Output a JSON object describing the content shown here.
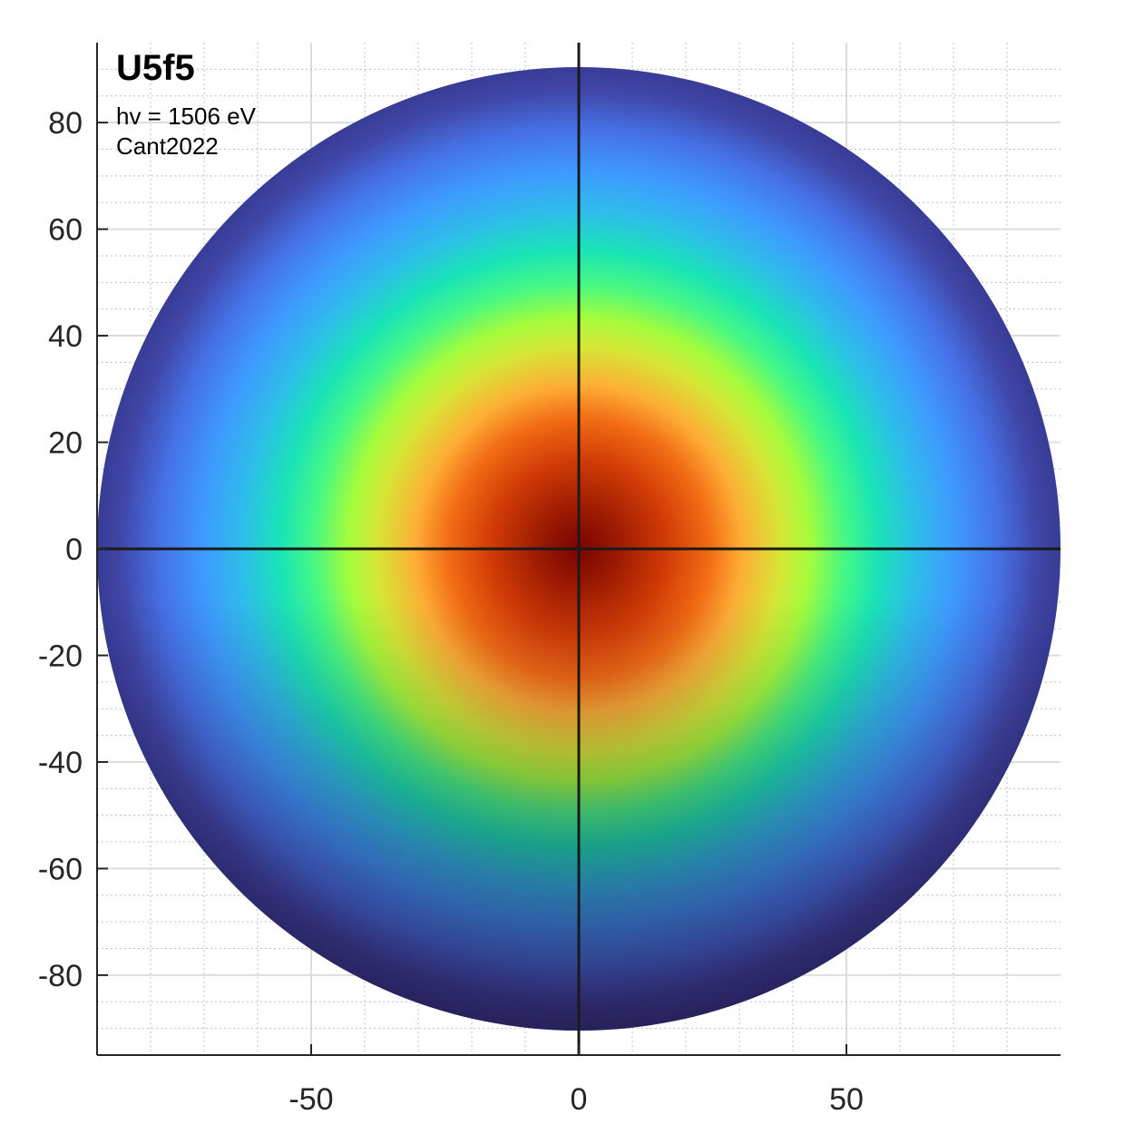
{
  "chart_data": {
    "type": "heatmap",
    "title": "U5f5",
    "annotations": [
      "hv = 1506 eV",
      "Cant2022"
    ],
    "xlim": [
      -90,
      90
    ],
    "ylim": [
      -95,
      95
    ],
    "x_ticks": [
      -50,
      0,
      50
    ],
    "y_ticks": [
      80,
      60,
      40,
      20,
      0,
      -20,
      -40,
      -60,
      -80
    ],
    "x_tick_labels": [
      "-50",
      "0",
      "50"
    ],
    "y_tick_labels": [
      "80",
      "60",
      "40",
      "20",
      "0",
      "-20",
      "-40",
      "-60",
      "-80"
    ],
    "disk_radius": 90,
    "peak_center": [
      0,
      0
    ],
    "colormap": "turbo",
    "grid": "on (major solid, minor dotted)",
    "crosshair_lines": [
      "x = 0",
      "y = 0"
    ],
    "colors": {
      "center": "#7a0403",
      "edge_top": "#3b3f9c",
      "edge_bottom": "#2a1a3e",
      "axis": "#262626",
      "grid_major": "#dcdcdc",
      "grid_minor": "#bfbfbf"
    }
  }
}
